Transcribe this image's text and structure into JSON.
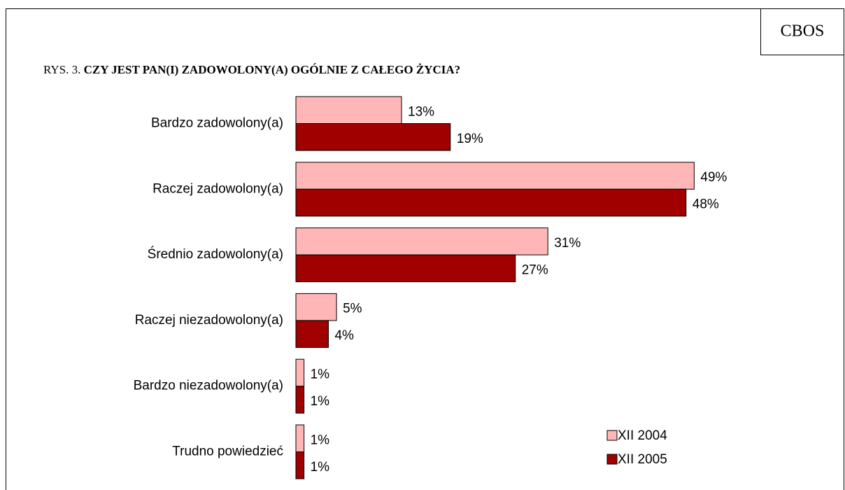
{
  "chart_data": {
    "type": "bar",
    "orientation": "horizontal",
    "source": "CBOS",
    "figure_label": "RYS. 3.",
    "title": "CZY JEST PAN(I) ZADOWOLONY(A) OGÓLNIE Z CAŁEGO ŻYCIA?",
    "categories": [
      "Bardzo zadowolony(a)",
      "Raczej zadowolony(a)",
      "Średnio zadowolony(a)",
      "Raczej niezadowolony(a)",
      "Bardzo niezadowolony(a)",
      "Trudno powiedzieć"
    ],
    "series": [
      {
        "name": "XII 2004",
        "color": "#ffb6b6",
        "values": [
          13,
          49,
          31,
          5,
          1,
          1
        ],
        "value_labels": [
          "13%",
          "49%",
          "31%",
          "5%",
          "1%",
          "1%"
        ]
      },
      {
        "name": "XII 2005",
        "color": "#a00000",
        "values": [
          19,
          48,
          27,
          4,
          1,
          1
        ],
        "value_labels": [
          "19%",
          "48%",
          "27%",
          "4%",
          "1%",
          "1%"
        ]
      }
    ],
    "legend": "lower right"
  }
}
